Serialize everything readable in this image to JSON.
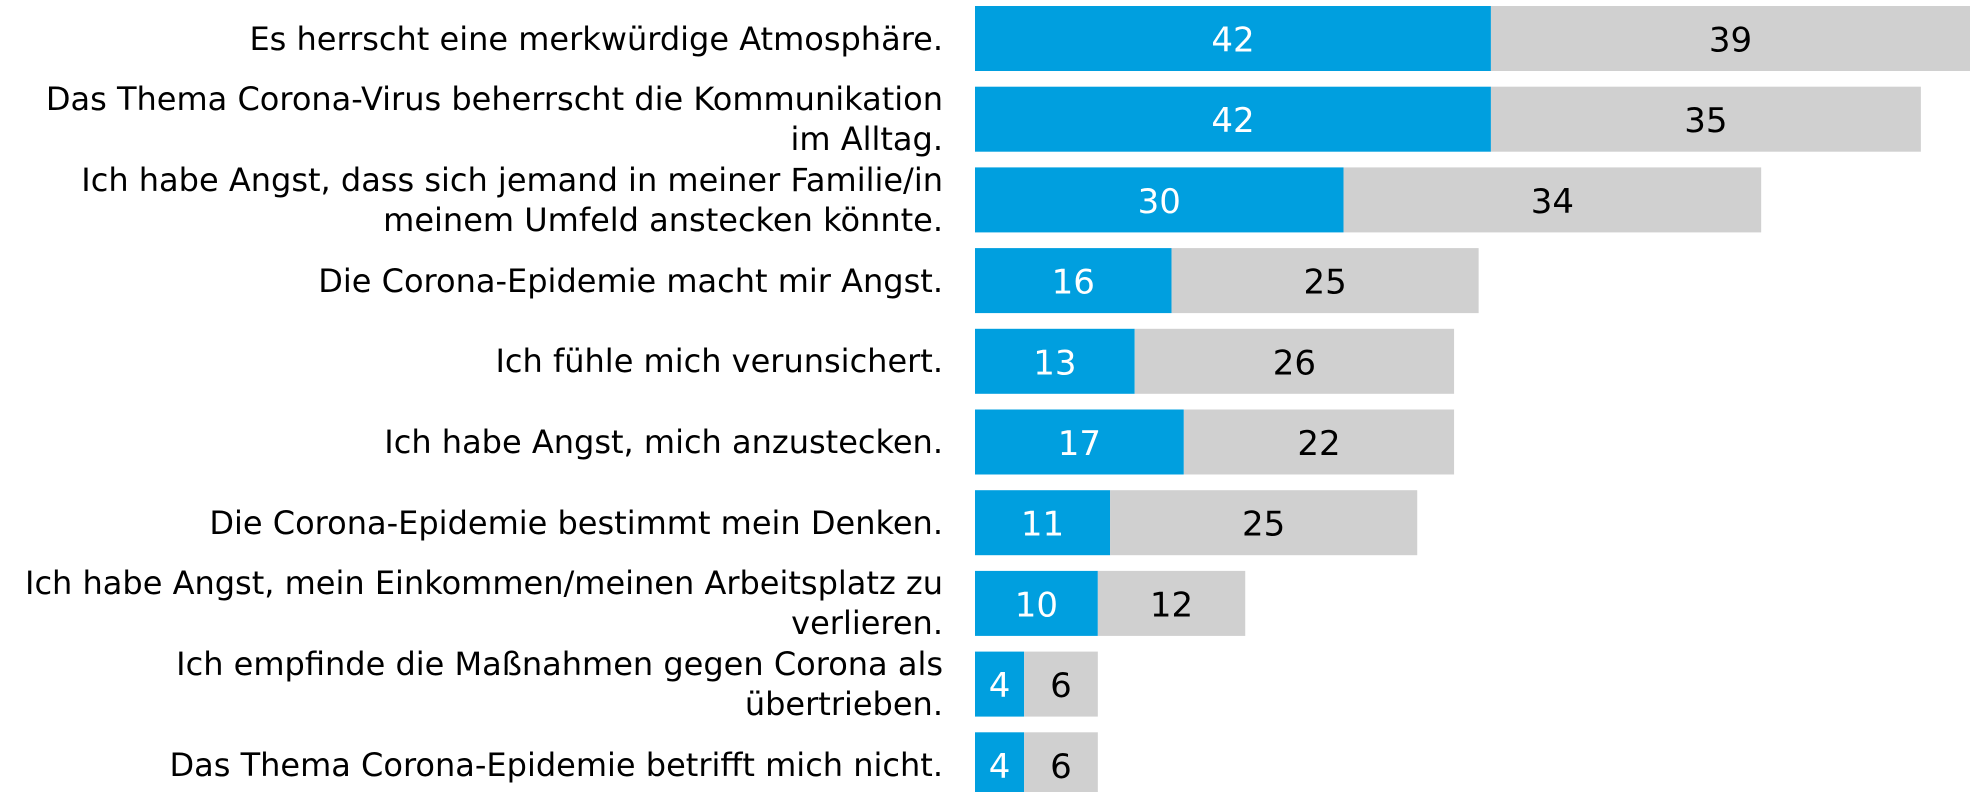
{
  "chart_data": {
    "type": "stacked-bar-horizontal",
    "categories": [
      "Es herrscht eine merkwürdige Atmosphäre.",
      "Das Thema Corona-Virus beherrscht die Kommunikation im Alltag.",
      "Ich habe Angst, dass sich jemand in meiner Familie/in meinem Umfeld anstecken könnte.",
      "Die Corona-Epidemie macht mir Angst.",
      "Ich fühle mich verunsichert.",
      "Ich habe Angst, mich anzustecken.",
      "Die Corona-Epidemie bestimmt mein Denken.",
      "Ich habe Angst, mein Einkommen/meinen Arbeitsplatz zu verlieren.",
      "Ich empfinde die Maßnahmen gegen Corona als übertrieben.",
      "Das Thema Corona-Epidemie betrifft mich nicht."
    ],
    "series": [
      {
        "color": "#009fdf",
        "label_color": "#ffffff",
        "values": [
          42,
          42,
          30,
          16,
          13,
          17,
          11,
          10,
          4,
          4
        ]
      },
      {
        "color": "#d0d0d0",
        "label_color": "#000000",
        "values": [
          39,
          35,
          34,
          25,
          26,
          22,
          25,
          12,
          6,
          6
        ]
      }
    ]
  }
}
